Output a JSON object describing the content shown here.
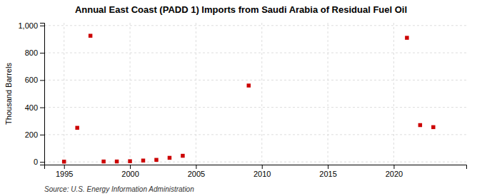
{
  "chart_data": {
    "type": "scatter",
    "title": "Annual East Coast (PADD 1) Imports from Saudi Arabia of Residual Fuel Oil",
    "ylabel": "Thousand Barrels",
    "source": "Source: U.S. Energy Information Administration",
    "x": [
      1995,
      1996,
      1997,
      1998,
      1999,
      2000,
      2001,
      2002,
      2003,
      2004,
      2009,
      2021,
      2022,
      2023
    ],
    "values": [
      2,
      250,
      925,
      3,
      3,
      5,
      10,
      15,
      30,
      45,
      560,
      910,
      270,
      255
    ],
    "color": "#cc0000",
    "marker": "square",
    "xlim": [
      1993.5,
      2025.5
    ],
    "xticks": [
      1995,
      2000,
      2005,
      2010,
      2015,
      2020
    ],
    "ylim": [
      -20,
      1020
    ],
    "yticks": [
      0,
      200,
      400,
      600,
      800,
      {
        "value": 1000,
        "label": "1,000"
      }
    ],
    "grid": true
  }
}
